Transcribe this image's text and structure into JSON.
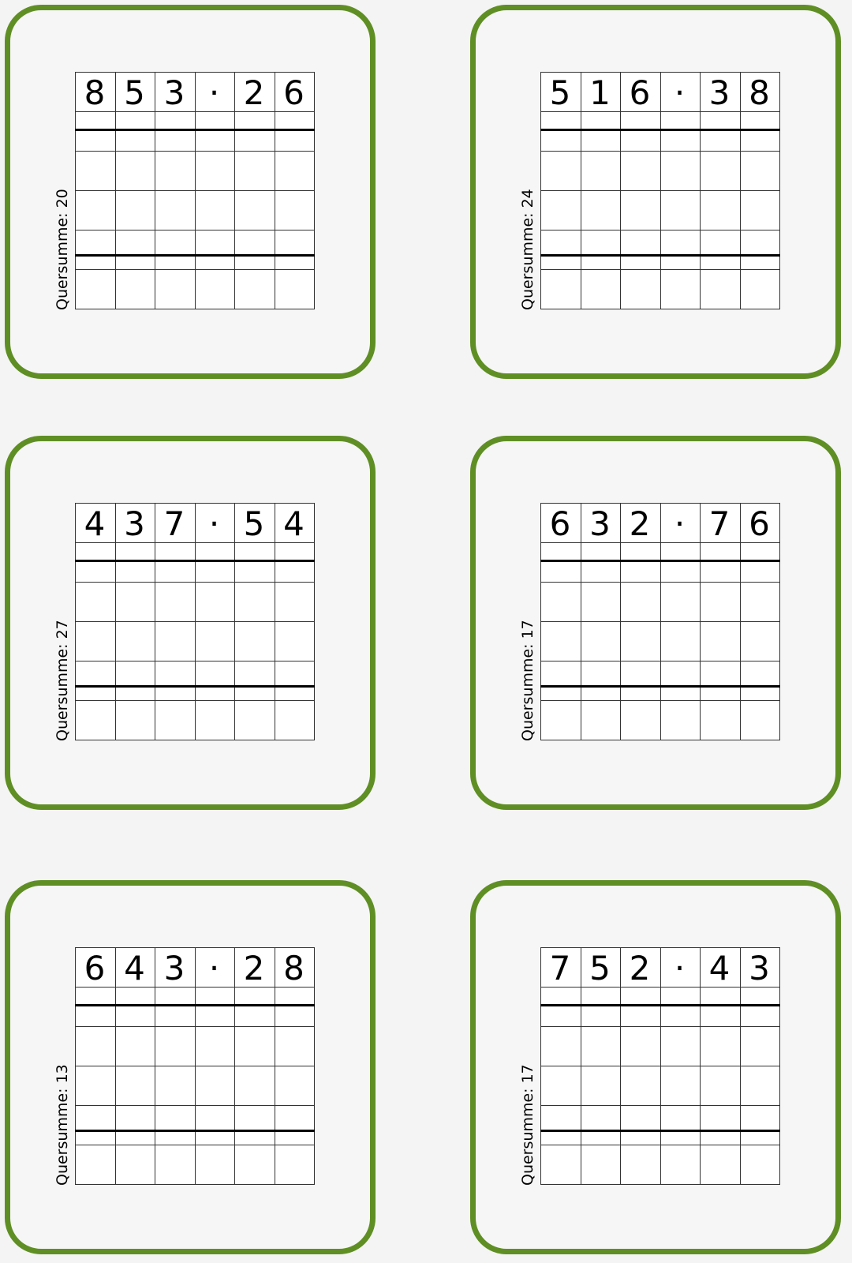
{
  "label_prefix": "Quersumme: ",
  "colors": {
    "card_border": "#5f8f24",
    "background": "#f4f4f4"
  },
  "cards": [
    {
      "digits": [
        "8",
        "5",
        "3",
        "·",
        "2",
        "6"
      ],
      "quersumme": "Quersumme: 20"
    },
    {
      "digits": [
        "5",
        "1",
        "6",
        "·",
        "3",
        "8"
      ],
      "quersumme": "Quersumme: 24"
    },
    {
      "digits": [
        "4",
        "3",
        "7",
        "·",
        "5",
        "4"
      ],
      "quersumme": "Quersumme: 27"
    },
    {
      "digits": [
        "6",
        "3",
        "2",
        "·",
        "7",
        "6"
      ],
      "quersumme": "Quersumme: 17"
    },
    {
      "digits": [
        "6",
        "4",
        "3",
        "·",
        "2",
        "8"
      ],
      "quersumme": "Quersumme: 13"
    },
    {
      "digits": [
        "7",
        "5",
        "2",
        "·",
        "4",
        "3"
      ],
      "quersumme": "Quersumme: 17"
    }
  ]
}
